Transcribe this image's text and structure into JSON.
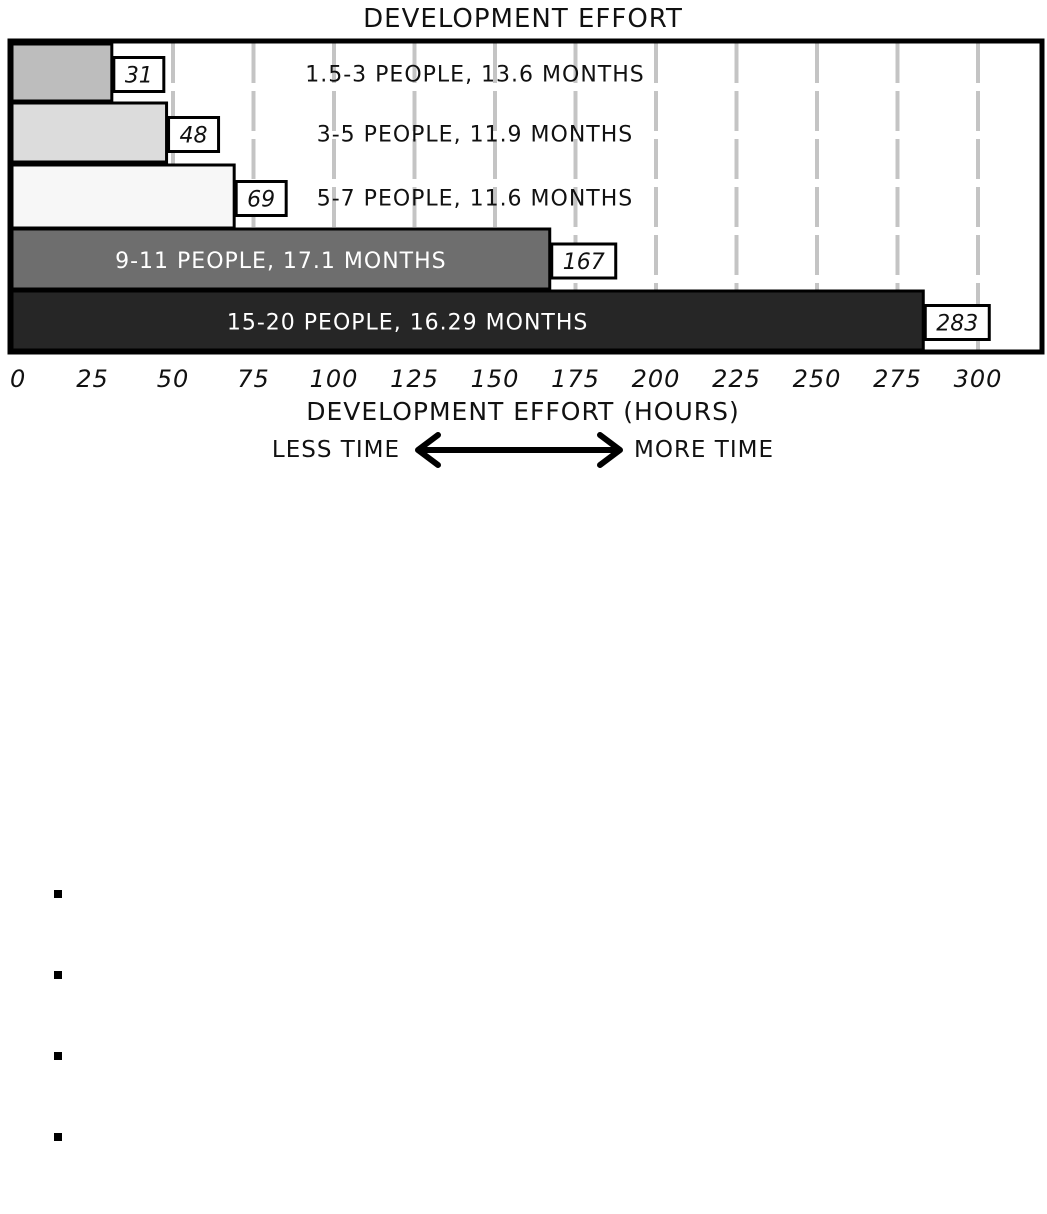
{
  "chart_data": {
    "type": "bar",
    "orientation": "horizontal",
    "title": "DEVELOPMENT EFFORT",
    "xlabel": "DEVELOPMENT EFFORT (HOURS)",
    "ylabel": "",
    "xlim": [
      0,
      325
    ],
    "xticks": [
      0,
      25,
      50,
      75,
      100,
      125,
      150,
      175,
      200,
      225,
      250,
      275,
      300
    ],
    "grid": true,
    "categories": [
      "1.5-3 PEOPLE, 13.6 MONTHS",
      "3-5 PEOPLE, 11.9 MONTHS",
      "5-7 PEOPLE, 11.6 MONTHS",
      "9-11 PEOPLE, 17.1 MONTHS",
      "15-20 PEOPLE, 16.29 MONTHS"
    ],
    "values": [
      31,
      48,
      69,
      167,
      283
    ],
    "value_labels": [
      "31",
      "48",
      "69",
      "167",
      "283"
    ],
    "colors": [
      "#bdbdbd",
      "#dcdcdc",
      "#f7f7f7",
      "#6e6e6e",
      "#262626"
    ],
    "label_colors": [
      "#111111",
      "#111111",
      "#111111",
      "#ffffff",
      "#ffffff"
    ]
  },
  "annotation": {
    "less": "LESS TIME",
    "more": "MORE TIME"
  },
  "bullets": [
    "",
    "",
    "",
    ""
  ]
}
